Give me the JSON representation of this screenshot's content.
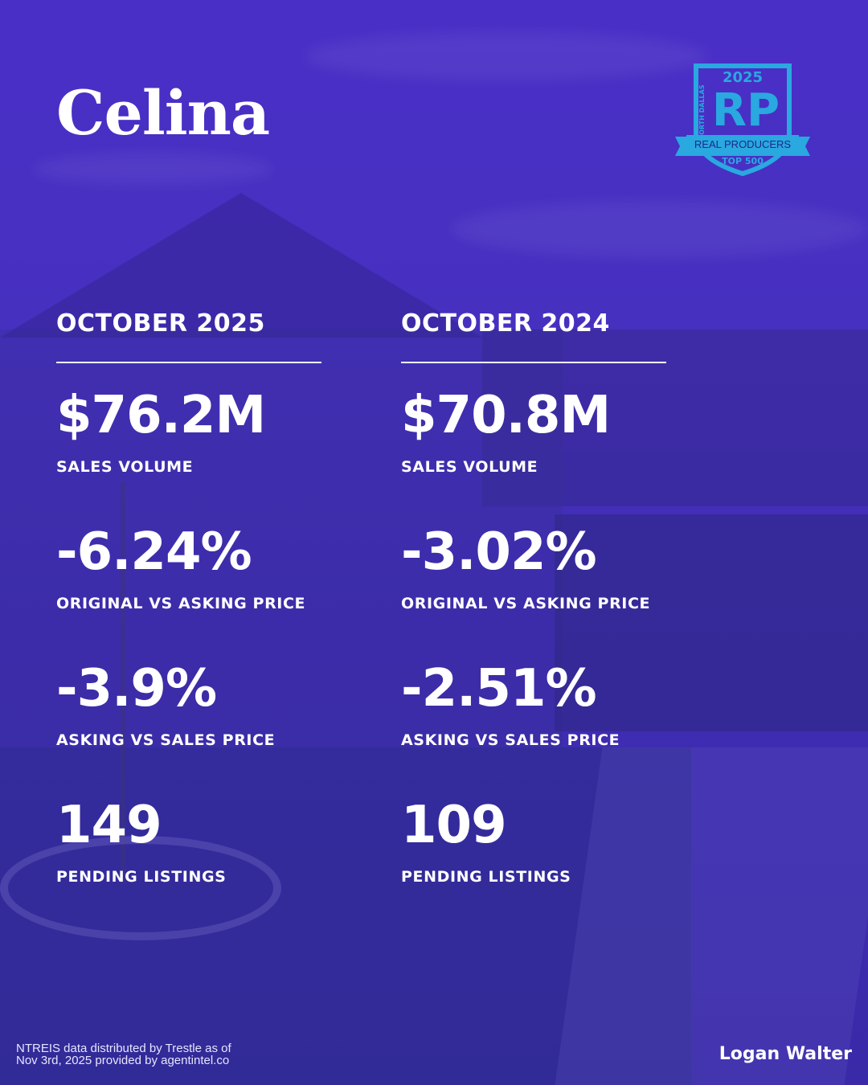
{
  "header": {
    "city": "Celina"
  },
  "badge": {
    "year": "2025",
    "monogram": "RP",
    "side_text": "NORTH DALLAS",
    "ribbon": "REAL PRODUCERS",
    "rank": "TOP 500",
    "colors": {
      "primary": "#2aa8e0",
      "dark": "#1f8fc4"
    }
  },
  "columns": [
    {
      "period": "OCTOBER 2025",
      "stats": [
        {
          "value": "$76.2M",
          "label": "SALES VOLUME"
        },
        {
          "value": "-6.24%",
          "label": "ORIGINAL VS ASKING PRICE"
        },
        {
          "value": "-3.9%",
          "label": "ASKING VS SALES PRICE"
        },
        {
          "value": "149",
          "label": "PENDING LISTINGS"
        }
      ]
    },
    {
      "period": "OCTOBER 2024",
      "stats": [
        {
          "value": "$70.8M",
          "label": "SALES VOLUME"
        },
        {
          "value": "-3.02%",
          "label": "ORIGINAL VS ASKING PRICE"
        },
        {
          "value": "-2.51%",
          "label": "ASKING VS SALES PRICE"
        },
        {
          "value": "109",
          "label": "PENDING LISTINGS"
        }
      ]
    }
  ],
  "footer": {
    "source_line1": "NTREIS data distributed by Trestle as of",
    "source_line2": "Nov 3rd, 2025 provided by agentintel.co",
    "agent": "Logan Walter"
  },
  "colors": {
    "overlay": "#4530c0",
    "text": "#ffffff"
  }
}
